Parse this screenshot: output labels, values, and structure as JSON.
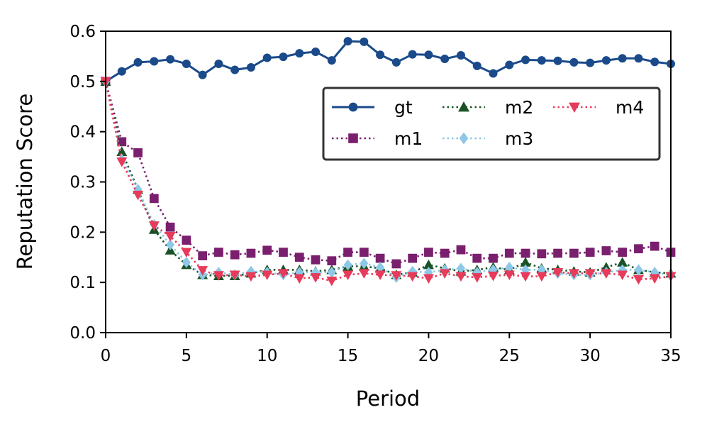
{
  "chart_data": {
    "type": "line",
    "title": "",
    "xlabel": "Period",
    "ylabel": "Reputation Score",
    "xlim": [
      0,
      35
    ],
    "ylim": [
      0.0,
      0.6
    ],
    "xticks": [
      "0",
      "5",
      "10",
      "15",
      "20",
      "25",
      "30",
      "35"
    ],
    "yticks": [
      "0.0",
      "0.1",
      "0.2",
      "0.3",
      "0.4",
      "0.5",
      "0.6"
    ],
    "grid": false,
    "legend_position": "upper-right",
    "x": [
      0,
      1,
      2,
      3,
      4,
      5,
      6,
      7,
      8,
      9,
      10,
      11,
      12,
      13,
      14,
      15,
      16,
      17,
      18,
      19,
      20,
      21,
      22,
      23,
      24,
      25,
      26,
      27,
      28,
      29,
      30,
      31,
      32,
      33,
      34,
      35
    ],
    "series": [
      {
        "name": "gt",
        "color": "#1a4a8a",
        "marker": "circle",
        "linestyle": "solid",
        "values": [
          0.5,
          0.52,
          0.538,
          0.54,
          0.544,
          0.535,
          0.513,
          0.535,
          0.523,
          0.528,
          0.547,
          0.549,
          0.556,
          0.559,
          0.542,
          0.58,
          0.579,
          0.553,
          0.538,
          0.554,
          0.553,
          0.545,
          0.552,
          0.531,
          0.516,
          0.533,
          0.543,
          0.542,
          0.541,
          0.538,
          0.537,
          0.542,
          0.546,
          0.546,
          0.539,
          0.535
        ]
      },
      {
        "name": "m1",
        "color": "#7a1f6e",
        "marker": "square",
        "linestyle": "dotted",
        "values": [
          0.5,
          0.38,
          0.358,
          0.267,
          0.21,
          0.184,
          0.153,
          0.16,
          0.155,
          0.158,
          0.164,
          0.16,
          0.15,
          0.145,
          0.143,
          0.16,
          0.16,
          0.148,
          0.137,
          0.148,
          0.16,
          0.158,
          0.165,
          0.148,
          0.148,
          0.158,
          0.158,
          0.157,
          0.158,
          0.158,
          0.16,
          0.163,
          0.16,
          0.167,
          0.172,
          0.16
        ]
      },
      {
        "name": "m2",
        "color": "#1a5226",
        "marker": "triangle-up",
        "linestyle": "dotted",
        "values": [
          0.5,
          0.36,
          0.285,
          0.205,
          0.164,
          0.135,
          0.115,
          0.113,
          0.113,
          0.118,
          0.125,
          0.125,
          0.125,
          0.122,
          0.125,
          0.132,
          0.132,
          0.128,
          0.115,
          0.12,
          0.135,
          0.128,
          0.122,
          0.125,
          0.13,
          0.125,
          0.14,
          0.128,
          0.125,
          0.122,
          0.12,
          0.13,
          0.14,
          0.125,
          0.12,
          0.118
        ]
      },
      {
        "name": "m3",
        "color": "#8dc8e8",
        "marker": "diamond",
        "linestyle": "dotted",
        "values": [
          0.5,
          0.345,
          0.285,
          0.215,
          0.175,
          0.14,
          0.115,
          0.12,
          0.115,
          0.122,
          0.12,
          0.115,
          0.12,
          0.12,
          0.12,
          0.135,
          0.138,
          0.13,
          0.11,
          0.122,
          0.12,
          0.125,
          0.128,
          0.12,
          0.125,
          0.13,
          0.125,
          0.125,
          0.118,
          0.115,
          0.115,
          0.12,
          0.125,
          0.125,
          0.12,
          0.115
        ]
      },
      {
        "name": "m4",
        "color": "#e83a5a",
        "marker": "triangle-down",
        "linestyle": "dotted",
        "values": [
          0.5,
          0.34,
          0.274,
          0.213,
          0.192,
          0.16,
          0.124,
          0.114,
          0.115,
          0.112,
          0.115,
          0.118,
          0.108,
          0.11,
          0.103,
          0.115,
          0.118,
          0.115,
          0.114,
          0.112,
          0.108,
          0.118,
          0.112,
          0.11,
          0.113,
          0.115,
          0.112,
          0.112,
          0.12,
          0.118,
          0.118,
          0.118,
          0.115,
          0.106,
          0.108,
          0.112
        ]
      }
    ]
  }
}
